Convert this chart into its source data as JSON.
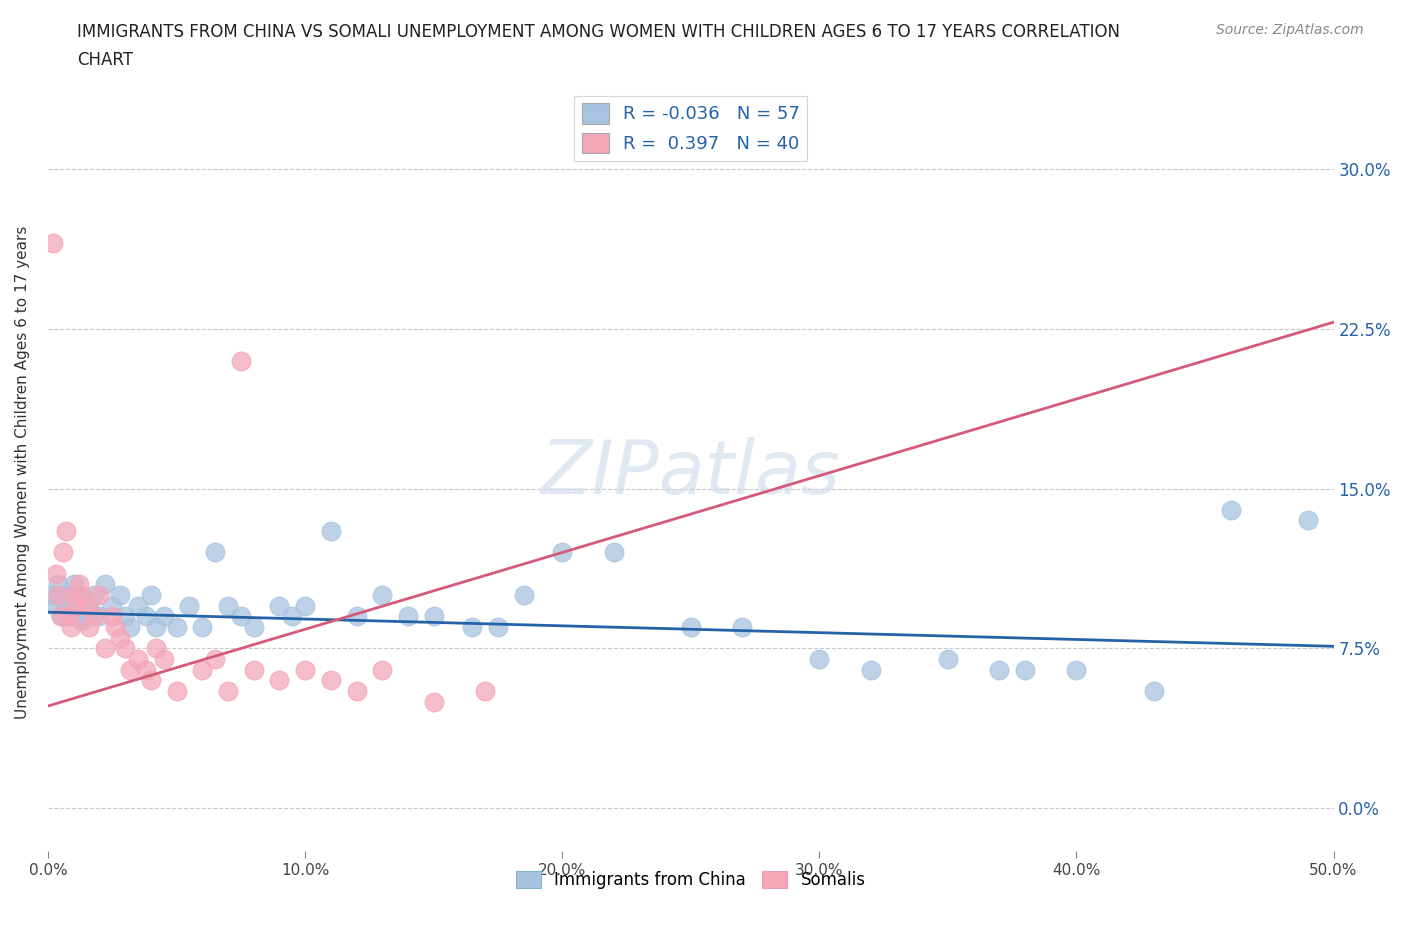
{
  "title": "IMMIGRANTS FROM CHINA VS SOMALI UNEMPLOYMENT AMONG WOMEN WITH CHILDREN AGES 6 TO 17 YEARS CORRELATION\nCHART",
  "source": "Source: ZipAtlas.com",
  "ylabel": "Unemployment Among Women with Children Ages 6 to 17 years",
  "xlim": [
    0.0,
    0.5
  ],
  "ylim": [
    -0.02,
    0.335
  ],
  "yticks": [
    0.0,
    0.075,
    0.15,
    0.225,
    0.3
  ],
  "ytick_labels": [
    "0.0%",
    "7.5%",
    "15.0%",
    "22.5%",
    "30.0%"
  ],
  "xticks": [
    0.0,
    0.1,
    0.2,
    0.3,
    0.4,
    0.5
  ],
  "xtick_labels": [
    "0.0%",
    "10.0%",
    "20.0%",
    "30.0%",
    "40.0%",
    "50.0%"
  ],
  "china_R": -0.036,
  "china_N": 57,
  "somali_R": 0.397,
  "somali_N": 40,
  "china_color": "#a8c4e0",
  "somali_color": "#f4a7b9",
  "china_line_color": "#2563a8",
  "somali_line_color": "#d45a7a",
  "china_line": [
    [
      0.0,
      0.092
    ],
    [
      0.5,
      0.076
    ]
  ],
  "somali_line": [
    [
      0.0,
      0.048
    ],
    [
      0.5,
      0.228
    ]
  ],
  "china_scatter": [
    [
      0.002,
      0.1
    ],
    [
      0.003,
      0.095
    ],
    [
      0.004,
      0.105
    ],
    [
      0.005,
      0.09
    ],
    [
      0.006,
      0.1
    ],
    [
      0.007,
      0.095
    ],
    [
      0.008,
      0.1
    ],
    [
      0.009,
      0.09
    ],
    [
      0.01,
      0.105
    ],
    [
      0.011,
      0.095
    ],
    [
      0.012,
      0.1
    ],
    [
      0.013,
      0.088
    ],
    [
      0.015,
      0.09
    ],
    [
      0.016,
      0.095
    ],
    [
      0.018,
      0.1
    ],
    [
      0.02,
      0.09
    ],
    [
      0.022,
      0.105
    ],
    [
      0.025,
      0.095
    ],
    [
      0.028,
      0.1
    ],
    [
      0.03,
      0.09
    ],
    [
      0.032,
      0.085
    ],
    [
      0.035,
      0.095
    ],
    [
      0.038,
      0.09
    ],
    [
      0.04,
      0.1
    ],
    [
      0.042,
      0.085
    ],
    [
      0.045,
      0.09
    ],
    [
      0.05,
      0.085
    ],
    [
      0.055,
      0.095
    ],
    [
      0.06,
      0.085
    ],
    [
      0.065,
      0.12
    ],
    [
      0.07,
      0.095
    ],
    [
      0.075,
      0.09
    ],
    [
      0.08,
      0.085
    ],
    [
      0.09,
      0.095
    ],
    [
      0.095,
      0.09
    ],
    [
      0.1,
      0.095
    ],
    [
      0.11,
      0.13
    ],
    [
      0.12,
      0.09
    ],
    [
      0.13,
      0.1
    ],
    [
      0.14,
      0.09
    ],
    [
      0.15,
      0.09
    ],
    [
      0.165,
      0.085
    ],
    [
      0.175,
      0.085
    ],
    [
      0.185,
      0.1
    ],
    [
      0.2,
      0.12
    ],
    [
      0.22,
      0.12
    ],
    [
      0.25,
      0.085
    ],
    [
      0.27,
      0.085
    ],
    [
      0.3,
      0.07
    ],
    [
      0.32,
      0.065
    ],
    [
      0.35,
      0.07
    ],
    [
      0.37,
      0.065
    ],
    [
      0.38,
      0.065
    ],
    [
      0.4,
      0.065
    ],
    [
      0.43,
      0.055
    ],
    [
      0.46,
      0.14
    ],
    [
      0.49,
      0.135
    ]
  ],
  "somali_scatter": [
    [
      0.002,
      0.265
    ],
    [
      0.003,
      0.11
    ],
    [
      0.004,
      0.1
    ],
    [
      0.005,
      0.09
    ],
    [
      0.006,
      0.12
    ],
    [
      0.007,
      0.13
    ],
    [
      0.008,
      0.09
    ],
    [
      0.009,
      0.085
    ],
    [
      0.01,
      0.1
    ],
    [
      0.011,
      0.095
    ],
    [
      0.012,
      0.105
    ],
    [
      0.013,
      0.1
    ],
    [
      0.015,
      0.095
    ],
    [
      0.016,
      0.085
    ],
    [
      0.018,
      0.09
    ],
    [
      0.02,
      0.1
    ],
    [
      0.022,
      0.075
    ],
    [
      0.025,
      0.09
    ],
    [
      0.026,
      0.085
    ],
    [
      0.028,
      0.08
    ],
    [
      0.03,
      0.075
    ],
    [
      0.032,
      0.065
    ],
    [
      0.035,
      0.07
    ],
    [
      0.038,
      0.065
    ],
    [
      0.04,
      0.06
    ],
    [
      0.042,
      0.075
    ],
    [
      0.045,
      0.07
    ],
    [
      0.05,
      0.055
    ],
    [
      0.06,
      0.065
    ],
    [
      0.065,
      0.07
    ],
    [
      0.07,
      0.055
    ],
    [
      0.075,
      0.21
    ],
    [
      0.08,
      0.065
    ],
    [
      0.09,
      0.06
    ],
    [
      0.1,
      0.065
    ],
    [
      0.11,
      0.06
    ],
    [
      0.12,
      0.055
    ],
    [
      0.13,
      0.065
    ],
    [
      0.15,
      0.05
    ],
    [
      0.17,
      0.055
    ]
  ]
}
